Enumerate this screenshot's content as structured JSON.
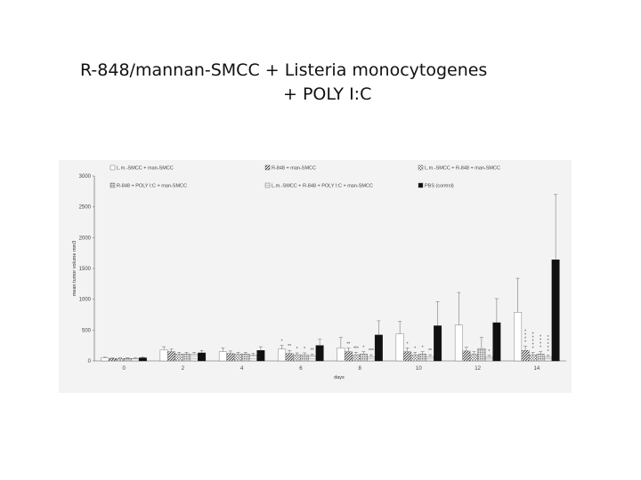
{
  "page": {
    "title_line1": "R-848/mannan-SMCC + Listeria monocytogenes",
    "title_line2": "+ POLY I:C"
  },
  "chart_data": {
    "type": "bar",
    "xlabel": "days",
    "ylabel": "mean tumor volume mm3",
    "ylim": [
      0,
      3000
    ],
    "yticks": [
      "0",
      "500",
      "1000",
      "1500",
      "2000",
      "2500",
      "3000"
    ],
    "categories": [
      "0",
      "2",
      "4",
      "6",
      "8",
      "10",
      "12",
      "14"
    ],
    "legend_placement": "top",
    "series": [
      {
        "name": "L.m.-SMCC + man-SMCC",
        "pattern": "white",
        "values": [
          50,
          180,
          150,
          190,
          210,
          440,
          580,
          790
        ],
        "errors": [
          10,
          50,
          60,
          60,
          170,
          200,
          530,
          550
        ]
      },
      {
        "name": "R-848 + man-SMCC",
        "pattern": "diag",
        "values": [
          40,
          150,
          120,
          120,
          150,
          150,
          160,
          170
        ],
        "errors": [
          10,
          40,
          40,
          50,
          60,
          60,
          60,
          70
        ]
      },
      {
        "name": "L.m.-SMCC + R-848 + man-SMCC",
        "pattern": "grid",
        "values": [
          40,
          110,
          110,
          100,
          100,
          100,
          110,
          100
        ],
        "errors": [
          10,
          30,
          30,
          30,
          40,
          40,
          40,
          40
        ]
      },
      {
        "name": "R-848 + POLY I:C + man-SMCC",
        "pattern": "dots",
        "values": [
          40,
          110,
          110,
          100,
          110,
          110,
          200,
          110
        ],
        "errors": [
          10,
          30,
          30,
          30,
          40,
          40,
          180,
          40
        ]
      },
      {
        "name": "L.m.-SMCC + R-848 + POLY I:C + man-SMCC",
        "pattern": "light",
        "values": [
          40,
          110,
          90,
          80,
          70,
          70,
          60,
          60
        ],
        "errors": [
          10,
          30,
          30,
          30,
          30,
          30,
          30,
          30
        ]
      },
      {
        "name": "PBS (control)",
        "pattern": "black",
        "values": [
          50,
          130,
          170,
          250,
          420,
          570,
          620,
          1640
        ],
        "errors": [
          10,
          40,
          60,
          100,
          230,
          390,
          390,
          1060
        ]
      }
    ],
    "annotations": [
      {
        "category": "6",
        "series": 0,
        "text": "*"
      },
      {
        "category": "6",
        "series": 1,
        "text": "**"
      },
      {
        "category": "6",
        "series": 2,
        "text": "*"
      },
      {
        "category": "6",
        "series": 3,
        "text": "*"
      },
      {
        "category": "6",
        "series": 4,
        "text": "**"
      },
      {
        "category": "8",
        "series": 1,
        "text": "**"
      },
      {
        "category": "8",
        "series": 2,
        "text": "***"
      },
      {
        "category": "8",
        "series": 3,
        "text": "*"
      },
      {
        "category": "8",
        "series": 4,
        "text": "***"
      },
      {
        "category": "10",
        "series": 1,
        "text": "*"
      },
      {
        "category": "10",
        "series": 2,
        "text": "*"
      },
      {
        "category": "10",
        "series": 3,
        "text": "*"
      },
      {
        "category": "10",
        "series": 4,
        "text": "**"
      },
      {
        "category": "12",
        "series": 4,
        "text": "*"
      },
      {
        "category": "14",
        "series": 1,
        "text": "****"
      },
      {
        "category": "14",
        "series": 2,
        "text": "*****"
      },
      {
        "category": "14",
        "series": 3,
        "text": "****"
      },
      {
        "category": "14",
        "series": 4,
        "text": "*****"
      }
    ]
  }
}
